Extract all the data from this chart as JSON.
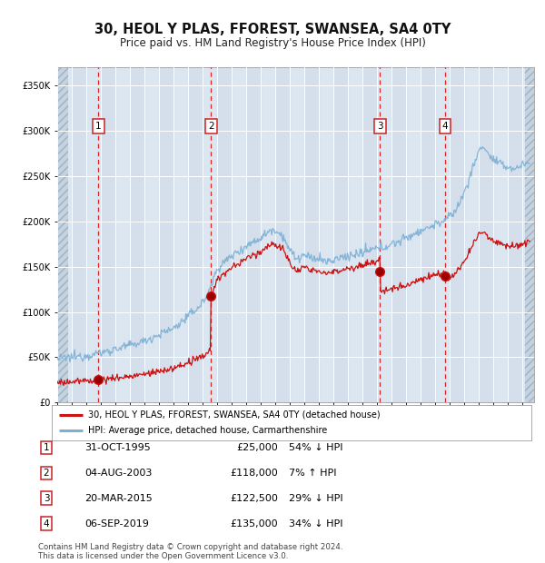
{
  "title": "30, HEOL Y PLAS, FFOREST, SWANSEA, SA4 0TY",
  "subtitle": "Price paid vs. HM Land Registry's House Price Index (HPI)",
  "legend_red": "30, HEOL Y PLAS, FFOREST, SWANSEA, SA4 0TY (detached house)",
  "legend_blue": "HPI: Average price, detached house, Carmarthenshire",
  "footnote1": "Contains HM Land Registry data © Crown copyright and database right 2024.",
  "footnote2": "This data is licensed under the Open Government Licence v3.0.",
  "sales": [
    {
      "num": 1,
      "date": "31-OCT-1995",
      "price": 25000,
      "pct": "54%",
      "dir": "↓",
      "year": 1995.83
    },
    {
      "num": 2,
      "date": "04-AUG-2003",
      "price": 118000,
      "pct": "7%",
      "dir": "↑",
      "year": 2003.58
    },
    {
      "num": 3,
      "date": "20-MAR-2015",
      "price": 122500,
      "pct": "29%",
      "dir": "↓",
      "year": 2015.21
    },
    {
      "num": 4,
      "date": "06-SEP-2019",
      "price": 135000,
      "pct": "34%",
      "dir": "↓",
      "year": 2019.67
    }
  ],
  "hpi_color": "#7bafd4",
  "red_color": "#cc1111",
  "bg_color": "#ffffff",
  "plot_bg": "#dce6f0",
  "grid_color": "#ffffff",
  "dashed_color": "#dd2222",
  "ylim": [
    0,
    370000
  ],
  "xlim_start": 1993.0,
  "xlim_end": 2025.8,
  "hatch_left_end": 1993.75,
  "hatch_right_start": 2025.17
}
